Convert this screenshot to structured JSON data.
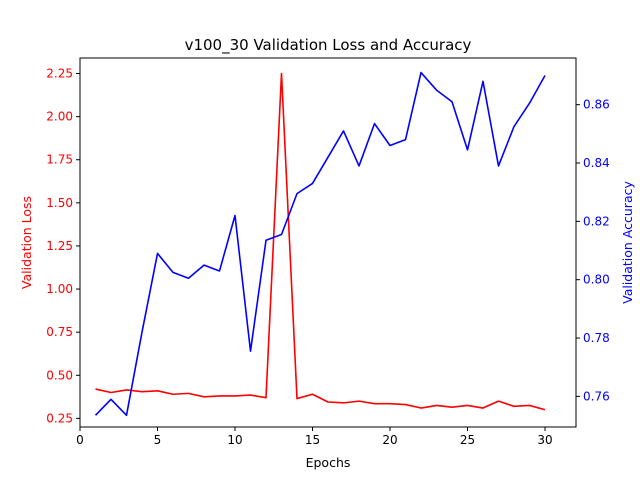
{
  "chart_data": {
    "type": "line",
    "title": "v100_30 Validation Loss and Accuracy",
    "xlabel": "Epochs",
    "x": [
      1,
      2,
      3,
      4,
      5,
      6,
      7,
      8,
      9,
      10,
      11,
      12,
      13,
      14,
      15,
      16,
      17,
      18,
      19,
      20,
      21,
      22,
      23,
      24,
      25,
      26,
      27,
      28,
      29,
      30
    ],
    "xlim": [
      0.0,
      32.0
    ],
    "xticks": [
      0,
      5,
      10,
      15,
      20,
      25,
      30
    ],
    "grid": false,
    "series": [
      {
        "name": "Validation Loss",
        "axis": "left",
        "color": "#ff0000",
        "values": [
          0.42,
          0.4,
          0.415,
          0.405,
          0.41,
          0.39,
          0.395,
          0.375,
          0.38,
          0.38,
          0.385,
          0.37,
          2.25,
          0.365,
          0.39,
          0.345,
          0.34,
          0.35,
          0.335,
          0.335,
          0.33,
          0.31,
          0.325,
          0.315,
          0.325,
          0.31,
          0.35,
          0.32,
          0.325,
          0.3
        ]
      },
      {
        "name": "Validation Accuracy",
        "axis": "right",
        "color": "#0000ff",
        "values": [
          0.7535,
          0.759,
          0.7535,
          0.782,
          0.809,
          0.8025,
          0.8005,
          0.805,
          0.803,
          0.822,
          0.7755,
          0.8135,
          0.8155,
          0.8295,
          0.833,
          0.842,
          0.851,
          0.839,
          0.8535,
          0.846,
          0.848,
          0.871,
          0.865,
          0.861,
          0.8445,
          0.868,
          0.839,
          0.8525,
          0.8605,
          0.87
        ]
      }
    ],
    "y_left": {
      "label": "Validation Loss",
      "color": "#ff0000",
      "lim": [
        0.2,
        2.34
      ],
      "ticks": [
        "0.25",
        "0.50",
        "0.75",
        "1.00",
        "1.25",
        "1.50",
        "1.75",
        "2.00",
        "2.25"
      ]
    },
    "y_right": {
      "label": "Validation Accuracy",
      "color": "#0000ff",
      "lim": [
        0.7495,
        0.876
      ],
      "ticks": [
        "0.76",
        "0.78",
        "0.80",
        "0.82",
        "0.84",
        "0.86"
      ]
    }
  }
}
